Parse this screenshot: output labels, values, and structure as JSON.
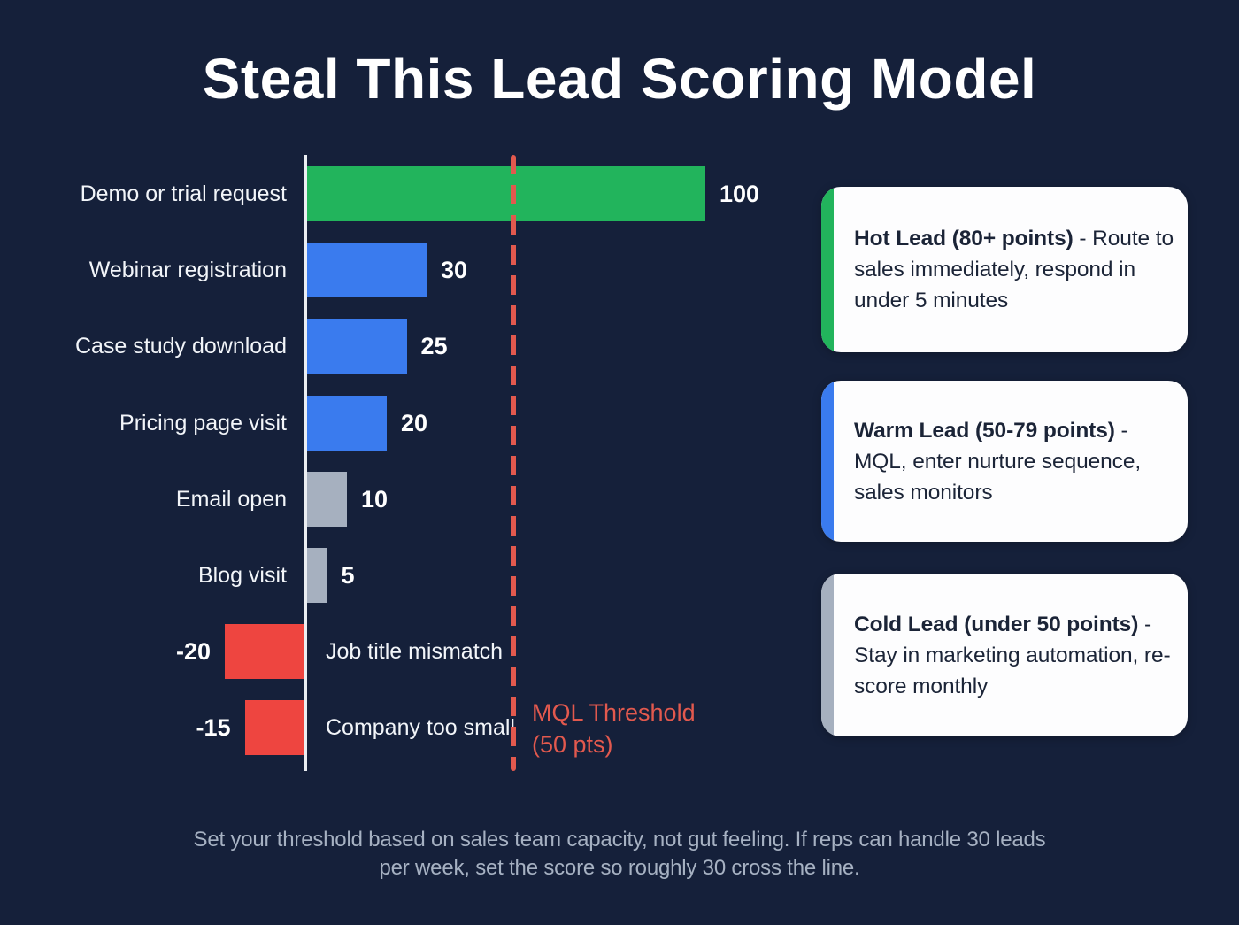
{
  "page": {
    "title": "Steal This Lead Scoring Model",
    "background_color": "#15203A",
    "footer_line1": "Set your threshold based on sales team capacity, not gut feeling. If reps can handle 30 leads",
    "footer_line2": "per week, set the score so roughly 30 cross the line."
  },
  "chart_data": {
    "type": "bar",
    "orientation": "horizontal",
    "categories": [
      "Demo or trial request",
      "Webinar registration",
      "Case study download",
      "Pricing page visit",
      "Email open",
      "Blog visit",
      "Job title mismatch",
      "Company too small"
    ],
    "values": [
      100,
      30,
      25,
      20,
      10,
      5,
      -20,
      -15
    ],
    "value_labels": [
      "100",
      "30",
      "25",
      "20",
      "10",
      "5",
      "-20",
      "-15"
    ],
    "bar_colors": [
      "#22B45C",
      "#3A7BEE",
      "#3A7BEE",
      "#3A7BEE",
      "#A6B0BF",
      "#A6B0BF",
      "#EE4540",
      "#EE4540"
    ],
    "axis_color": "#EBEEF2",
    "xlim": [
      -25,
      105
    ],
    "grid": "off",
    "threshold": {
      "value": 50,
      "label_line1": "MQL Threshold",
      "label_line2": "(50 pts)",
      "color": "#E2594E"
    }
  },
  "cards": [
    {
      "accent_color": "#22B45C",
      "title": "Hot Lead (80+ points)",
      "separator": " - ",
      "body": "Route to sales immediately, respond in under 5 minutes"
    },
    {
      "accent_color": "#3A7BEE",
      "title": "Warm Lead (50-79 points)",
      "separator": " - ",
      "body": "MQL, enter nurture sequence, sales monitors"
    },
    {
      "accent_color": "#A6B0BF",
      "title": "Cold Lead (under 50 points)",
      "separator": " - ",
      "body": "Stay in marketing automation, re-score monthly"
    }
  ]
}
